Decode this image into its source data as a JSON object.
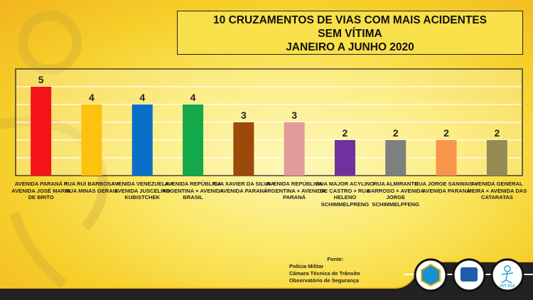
{
  "title_lines": [
    "10 CRUZAMENTOS DE VIAS COM MAIS ACIDENTES",
    "SEM VÍTIMA",
    "JANEIRO A JUNHO 2020"
  ],
  "chart_data": {
    "type": "bar",
    "title": "10 CRUZAMENTOS DE VIAS COM MAIS ACIDENTES SEM VÍTIMA JANEIRO A JUNHO 2020",
    "categories": [
      "AVENIDA PARANÁ × AVENIDA JOSÉ MARIA DE BRITO",
      "RUA RUI BARBOSA × RUA MINAS GERAIS",
      "AVENIDA VENEZUELA × AVENIDA JUSCELINO KUBISTCHEK",
      "AVENIDA REPÚBLICA ARGENTINA × AVENIDA BRASIL",
      "RUA XAVIER DA SILVA × AVENIDA PARANÁ",
      "AVENIDA REPÚBLICA ARGENTINA × AVENIDA PARANÁ",
      "RUA MAJOR ACYLINO DE CASTRO × RUA HELENO SCHIMMELPRENG",
      "RUA ALMIRANTE BARROSO × AVENIDA JORGE SCHIMMELPFENG",
      "RUA JORGE SANWAIS × AVENIDA PARANÁ",
      "AVENIDA GENERAL MEIRA × AVENIDA DAS CATARATAS"
    ],
    "values": [
      5,
      4,
      4,
      4,
      3,
      3,
      2,
      2,
      2,
      2
    ],
    "colors": [
      "#f5131a",
      "#fdc20f",
      "#0a6fc8",
      "#13a84a",
      "#9c4a0c",
      "#e39a9a",
      "#7030a0",
      "#7f7f7f",
      "#f7954a",
      "#948a54"
    ],
    "ylim": [
      0,
      6
    ],
    "grid": true,
    "data_labels": true
  },
  "source": {
    "heading": "Fonte:",
    "lines": [
      "Polícia Militar",
      "Câmara Técnica de Trânsito",
      "Observatório de Segurança"
    ]
  },
  "logos": [
    "PVT FOZ"
  ]
}
